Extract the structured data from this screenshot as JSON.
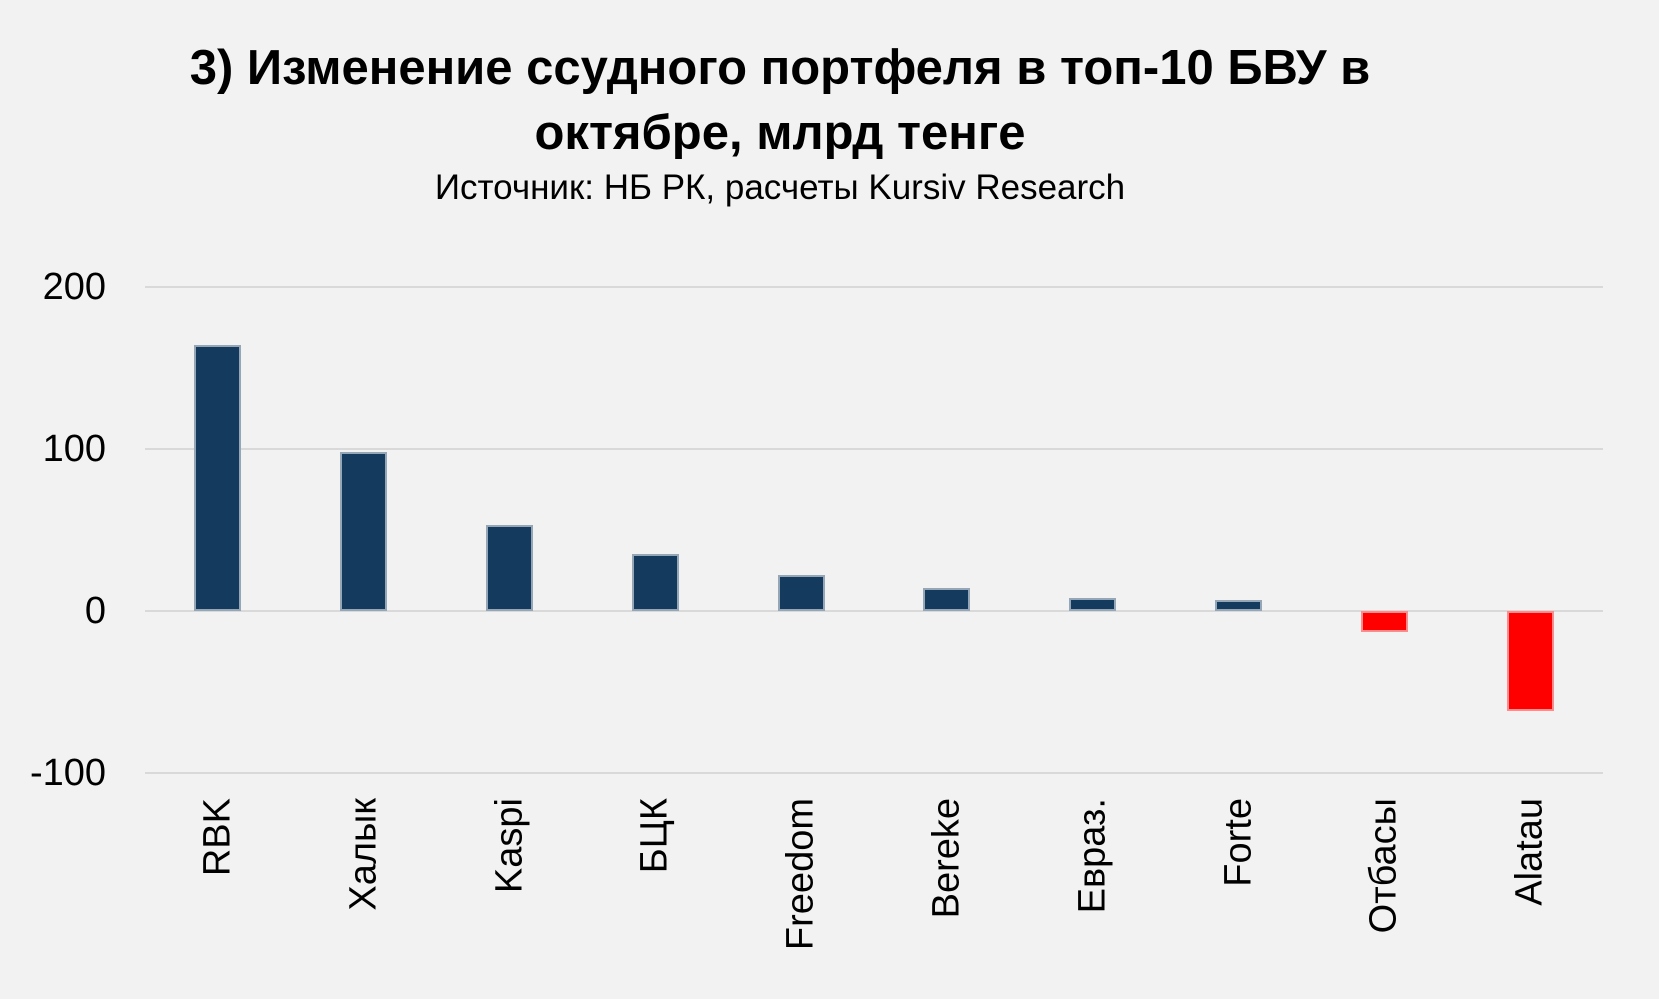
{
  "header": {
    "title_line1": "3) Изменение ссудного портфеля в топ-10 БВУ в",
    "title_line2": "октябре, млрд тенге",
    "subtitle": "Источник: НБ РК, расчеты Kursiv Research"
  },
  "chart_data": {
    "type": "bar",
    "title": "3) Изменение ссудного портфеля в топ-10 БВУ в октябре, млрд тенге",
    "subtitle": "Источник: НБ РК, расчеты Kursiv Research",
    "categories": [
      "RBK",
      "Халык",
      "Kaspi",
      "БЦК",
      "Freedom",
      "Bereke",
      "Евраз.",
      "Forte",
      "Отбасы",
      "Alatau"
    ],
    "values": [
      164,
      98,
      53,
      35,
      22,
      14,
      8,
      7,
      -13,
      -62
    ],
    "y_ticks": [
      200,
      100,
      0,
      -100
    ],
    "ylim": [
      -100,
      200
    ],
    "xlabel": "",
    "ylabel": "",
    "grid": true,
    "legend": false,
    "bar_colors": {
      "positive": "#143A5E",
      "negative": "#FE0000"
    }
  },
  "colors": {
    "background": "#F2F2F2",
    "gridline": "#D9D9D9",
    "text": "#000000"
  }
}
